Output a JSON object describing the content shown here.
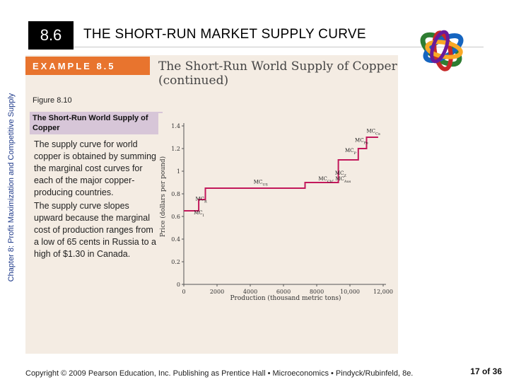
{
  "chapter_label": "Chapter 8: Profit Maximization and Competitive Supply",
  "section": {
    "number": "8.6",
    "title": "THE SHORT-RUN MARKET SUPPLY CURVE"
  },
  "example": {
    "label": "EXAMPLE 8.5",
    "heading_line1": "The Short-Run World Supply of Copper",
    "heading_line2": "(continued)"
  },
  "figure": {
    "label": "Figure 8.10",
    "title": "The Short-Run World Supply of Copper",
    "desc_p1": "The supply curve for world copper is obtained by summing the marginal cost curves for each of the major copper-producing countries.",
    "desc_p2": "The supply curve slopes upward because the marginal cost of production ranges from a low of 65 cents in Russia to a high of $1.30 in Canada."
  },
  "chart_data": {
    "type": "line",
    "xlabel": "Production (thousand metric tons)",
    "ylabel": "Price (dollars per pound)",
    "xlim": [
      0,
      12000
    ],
    "ylim": [
      0,
      1.4
    ],
    "xticks": [
      "0",
      "2000",
      "4000",
      "6000",
      "8000",
      "10,000",
      "12,000"
    ],
    "yticks": [
      "0",
      "0.2",
      "0.4",
      "0.6",
      "0.8",
      "1",
      "1.2",
      "1.4"
    ],
    "color": "#c2185b",
    "series": [
      {
        "points": [
          [
            0,
            0.65
          ],
          [
            900,
            0.65
          ],
          [
            900,
            0.75
          ],
          [
            1300,
            0.75
          ],
          [
            1300,
            0.85
          ],
          [
            7300,
            0.85
          ],
          [
            7300,
            0.9
          ],
          [
            9300,
            0.9
          ],
          [
            9300,
            1.1
          ],
          [
            10500,
            1.1
          ],
          [
            10500,
            1.2
          ],
          [
            11000,
            1.2
          ],
          [
            11000,
            1.3
          ],
          [
            11700,
            1.3
          ]
        ]
      }
    ],
    "annotations": [
      {
        "text": "MC_R",
        "x": 700,
        "y": 0.74
      },
      {
        "text": "MC_I",
        "x": 600,
        "y": 0.62
      },
      {
        "text": "MC_US",
        "x": 4200,
        "y": 0.89
      },
      {
        "text": "MC_Ch, MC_Aus",
        "x": 8100,
        "y": 0.92
      },
      {
        "text": "MC_Z",
        "x": 9100,
        "y": 0.97
      },
      {
        "text": "MC_P",
        "x": 9700,
        "y": 1.17
      },
      {
        "text": "MC_Pe",
        "x": 10300,
        "y": 1.26
      },
      {
        "text": "MC_Ca",
        "x": 11000,
        "y": 1.34
      }
    ]
  },
  "footer": "Copyright © 2009 Pearson Education, Inc. Publishing as Prentice Hall • Microeconomics • Pindyck/Rubinfeld, 8e.",
  "page": "17 of 36"
}
